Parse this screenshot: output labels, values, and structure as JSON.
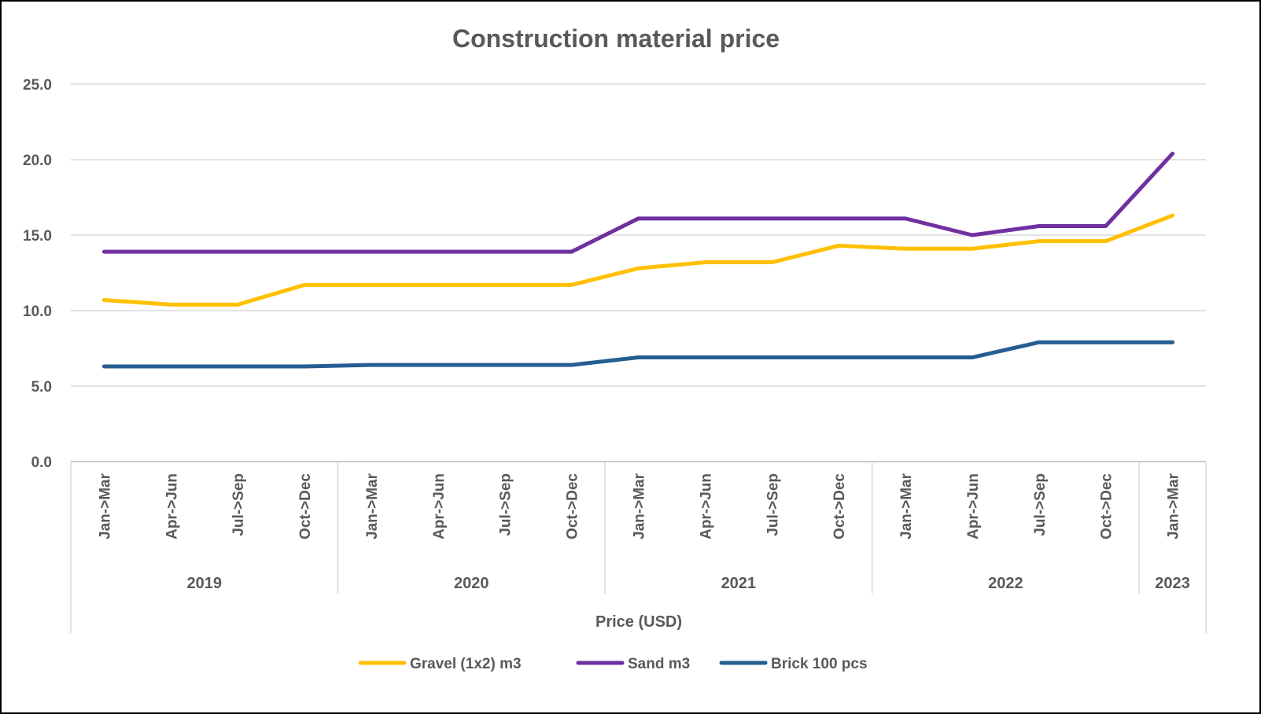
{
  "chart_data": {
    "type": "line",
    "title": "Construction material price",
    "xlabel": "Price (USD)",
    "ylabel": "",
    "ylim": [
      0,
      25
    ],
    "yticks": [
      "0.0",
      "5.0",
      "10.0",
      "15.0",
      "20.0",
      "25.0"
    ],
    "grid": true,
    "legend_position": "bottom",
    "groups": [
      {
        "label": "2019",
        "categories": [
          "Jan->Mar",
          "Apr->Jun",
          "Jul->Sep",
          "Oct->Dec"
        ]
      },
      {
        "label": "2020",
        "categories": [
          "Jan->Mar",
          "Apr->Jun",
          "Jul->Sep",
          "Oct->Dec"
        ]
      },
      {
        "label": "2021",
        "categories": [
          "Jan->Mar",
          "Apr->Jun",
          "Jul->Sep",
          "Oct->Dec"
        ]
      },
      {
        "label": "2022",
        "categories": [
          "Jan->Mar",
          "Apr->Jun",
          "Jul->Sep",
          "Oct->Dec"
        ]
      },
      {
        "label": "2023",
        "categories": [
          "Jan->Mar"
        ]
      }
    ],
    "series": [
      {
        "name": "Gravel (1x2) m3",
        "color": "#FFC000",
        "values": [
          10.7,
          10.4,
          10.4,
          11.7,
          11.7,
          11.7,
          11.7,
          11.7,
          12.8,
          13.2,
          13.2,
          14.3,
          14.1,
          14.1,
          14.6,
          14.6,
          16.3
        ]
      },
      {
        "name": "Sand m3",
        "color": "#7030A0",
        "values": [
          13.9,
          13.9,
          13.9,
          13.9,
          13.9,
          13.9,
          13.9,
          13.9,
          16.1,
          16.1,
          16.1,
          16.1,
          16.1,
          15.0,
          15.6,
          15.6,
          20.4
        ]
      },
      {
        "name": "Brick 100 pcs",
        "color": "#255E91",
        "values": [
          6.3,
          6.3,
          6.3,
          6.3,
          6.4,
          6.4,
          6.4,
          6.4,
          6.9,
          6.9,
          6.9,
          6.9,
          6.9,
          6.9,
          7.9,
          7.9,
          7.9
        ]
      }
    ]
  }
}
